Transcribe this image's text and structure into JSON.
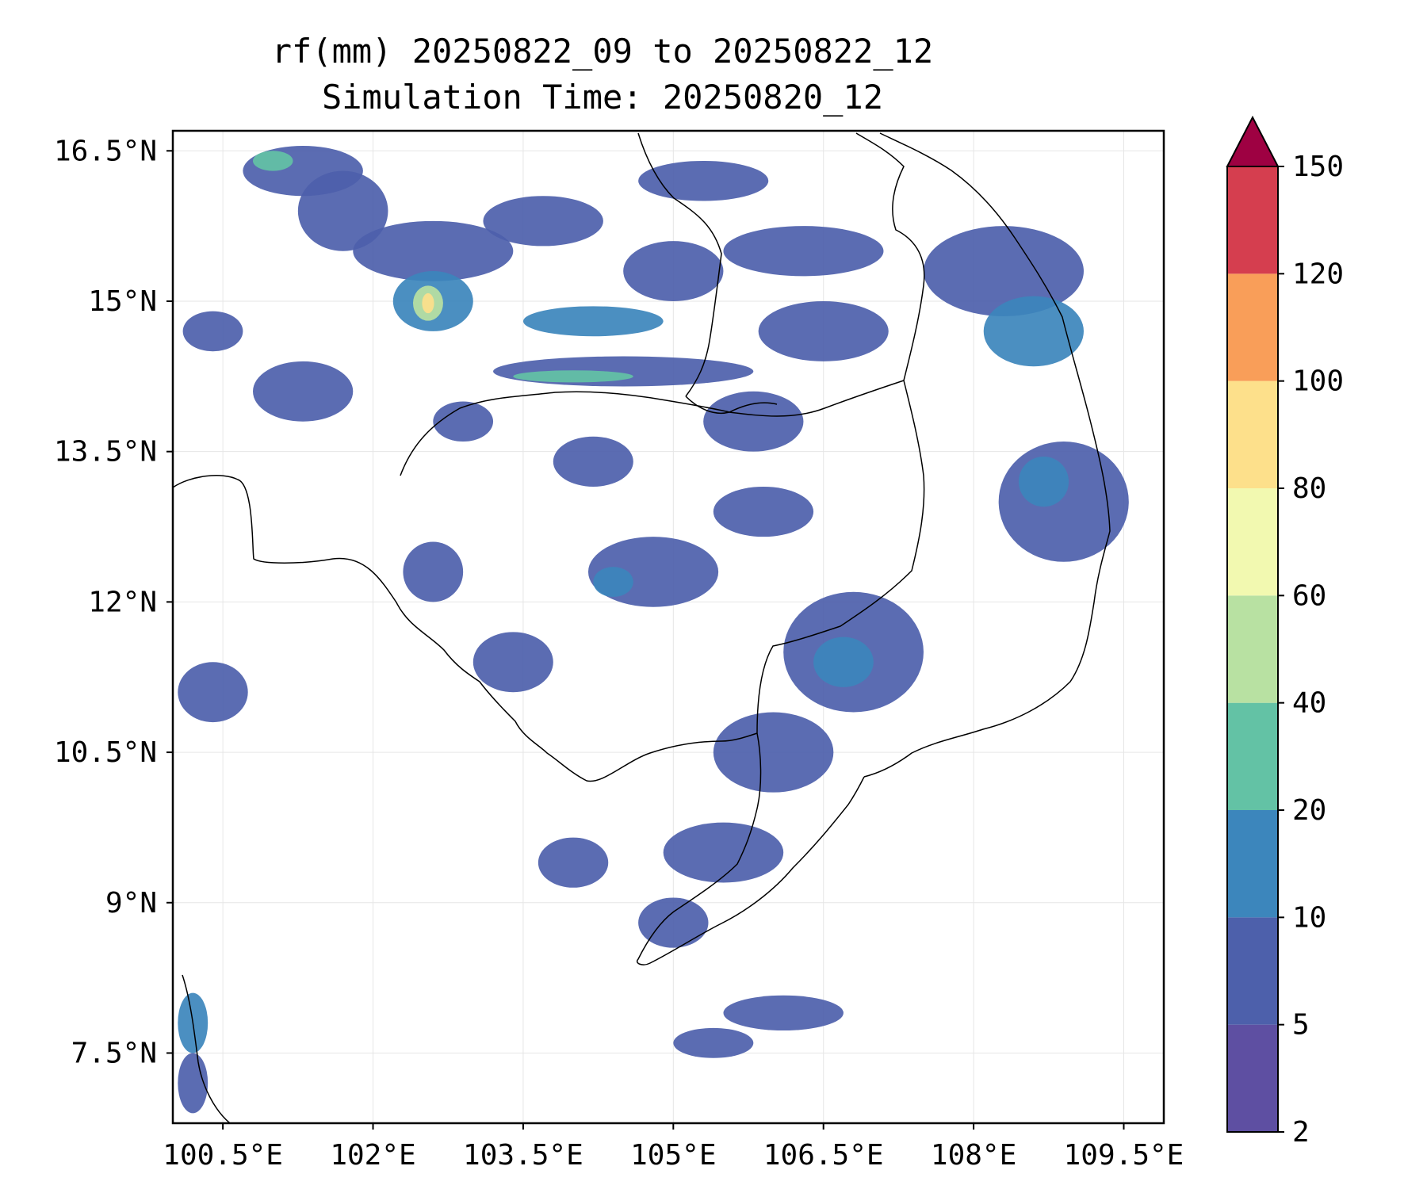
{
  "title": {
    "line1": "rf(mm) 20250822_09 to 20250822_12",
    "line2": "Simulation Time: 20250820_12"
  },
  "map": {
    "lon_range": [
      100.0,
      109.9
    ],
    "lat_range": [
      6.8,
      16.7
    ],
    "gridlines": true,
    "x_ticks": [
      {
        "value": 100.5,
        "label": "100.5°E"
      },
      {
        "value": 102.0,
        "label": "102°E"
      },
      {
        "value": 103.5,
        "label": "103.5°E"
      },
      {
        "value": 105.0,
        "label": "105°E"
      },
      {
        "value": 106.5,
        "label": "106.5°E"
      },
      {
        "value": 108.0,
        "label": "108°E"
      },
      {
        "value": 109.5,
        "label": "109.5°E"
      }
    ],
    "y_ticks": [
      {
        "value": 16.5,
        "label": "16.5°N"
      },
      {
        "value": 15.0,
        "label": "15°N"
      },
      {
        "value": 13.5,
        "label": "13.5°N"
      },
      {
        "value": 12.0,
        "label": "12°N"
      },
      {
        "value": 10.5,
        "label": "10.5°N"
      },
      {
        "value": 9.0,
        "label": "9°N"
      },
      {
        "value": 7.5,
        "label": "7.5°N"
      }
    ],
    "rainfall_cells": [
      {
        "lon": 101.3,
        "lat": 16.3,
        "w": 1.2,
        "h": 0.5,
        "level": 1
      },
      {
        "lon": 101.0,
        "lat": 16.4,
        "w": 0.4,
        "h": 0.2,
        "level": 3
      },
      {
        "lon": 101.7,
        "lat": 15.9,
        "w": 0.9,
        "h": 0.8,
        "level": 1
      },
      {
        "lon": 102.6,
        "lat": 15.5,
        "w": 1.6,
        "h": 0.6,
        "level": 1
      },
      {
        "lon": 102.6,
        "lat": 15.0,
        "w": 0.8,
        "h": 0.6,
        "level": 2
      },
      {
        "lon": 102.55,
        "lat": 14.98,
        "w": 0.3,
        "h": 0.35,
        "level": 4
      },
      {
        "lon": 102.55,
        "lat": 14.98,
        "w": 0.12,
        "h": 0.2,
        "level": 6
      },
      {
        "lon": 103.7,
        "lat": 15.8,
        "w": 1.2,
        "h": 0.5,
        "level": 1
      },
      {
        "lon": 104.2,
        "lat": 14.8,
        "w": 1.4,
        "h": 0.3,
        "level": 2
      },
      {
        "lon": 104.5,
        "lat": 14.3,
        "w": 2.6,
        "h": 0.3,
        "level": 1
      },
      {
        "lon": 104.0,
        "lat": 14.25,
        "w": 1.2,
        "h": 0.12,
        "level": 3
      },
      {
        "lon": 105.3,
        "lat": 16.2,
        "w": 1.3,
        "h": 0.4,
        "level": 1
      },
      {
        "lon": 105.0,
        "lat": 15.3,
        "w": 1.0,
        "h": 0.6,
        "level": 1
      },
      {
        "lon": 106.3,
        "lat": 15.5,
        "w": 1.6,
        "h": 0.5,
        "level": 1
      },
      {
        "lon": 106.5,
        "lat": 14.7,
        "w": 1.3,
        "h": 0.6,
        "level": 1
      },
      {
        "lon": 108.3,
        "lat": 15.3,
        "w": 1.6,
        "h": 0.9,
        "level": 1
      },
      {
        "lon": 108.6,
        "lat": 14.7,
        "w": 1.0,
        "h": 0.7,
        "level": 2
      },
      {
        "lon": 101.3,
        "lat": 14.1,
        "w": 1.0,
        "h": 0.6,
        "level": 1
      },
      {
        "lon": 100.4,
        "lat": 14.7,
        "w": 0.6,
        "h": 0.4,
        "level": 1
      },
      {
        "lon": 102.9,
        "lat": 13.8,
        "w": 0.6,
        "h": 0.4,
        "level": 1
      },
      {
        "lon": 104.2,
        "lat": 13.4,
        "w": 0.8,
        "h": 0.5,
        "level": 1
      },
      {
        "lon": 104.8,
        "lat": 12.3,
        "w": 1.3,
        "h": 0.7,
        "level": 1
      },
      {
        "lon": 104.4,
        "lat": 12.2,
        "w": 0.4,
        "h": 0.3,
        "level": 2
      },
      {
        "lon": 105.9,
        "lat": 12.9,
        "w": 1.0,
        "h": 0.5,
        "level": 1
      },
      {
        "lon": 105.8,
        "lat": 13.8,
        "w": 1.0,
        "h": 0.6,
        "level": 1
      },
      {
        "lon": 108.9,
        "lat": 13.0,
        "w": 1.3,
        "h": 1.2,
        "level": 1
      },
      {
        "lon": 108.7,
        "lat": 13.2,
        "w": 0.5,
        "h": 0.5,
        "level": 2
      },
      {
        "lon": 106.8,
        "lat": 11.5,
        "w": 1.4,
        "h": 1.2,
        "level": 1
      },
      {
        "lon": 106.7,
        "lat": 11.4,
        "w": 0.6,
        "h": 0.5,
        "level": 2
      },
      {
        "lon": 102.6,
        "lat": 12.3,
        "w": 0.6,
        "h": 0.6,
        "level": 1
      },
      {
        "lon": 103.4,
        "lat": 11.4,
        "w": 0.8,
        "h": 0.6,
        "level": 1
      },
      {
        "lon": 100.4,
        "lat": 11.1,
        "w": 0.7,
        "h": 0.6,
        "level": 1
      },
      {
        "lon": 106.0,
        "lat": 10.5,
        "w": 1.2,
        "h": 0.8,
        "level": 1
      },
      {
        "lon": 105.5,
        "lat": 9.5,
        "w": 1.2,
        "h": 0.6,
        "level": 1
      },
      {
        "lon": 104.0,
        "lat": 9.4,
        "w": 0.7,
        "h": 0.5,
        "level": 1
      },
      {
        "lon": 105.0,
        "lat": 8.8,
        "w": 0.7,
        "h": 0.5,
        "level": 1
      },
      {
        "lon": 106.1,
        "lat": 7.9,
        "w": 1.2,
        "h": 0.35,
        "level": 1
      },
      {
        "lon": 105.4,
        "lat": 7.6,
        "w": 0.8,
        "h": 0.3,
        "level": 1
      },
      {
        "lon": 100.2,
        "lat": 7.8,
        "w": 0.3,
        "h": 0.6,
        "level": 2
      },
      {
        "lon": 100.2,
        "lat": 7.2,
        "w": 0.3,
        "h": 0.6,
        "level": 1
      }
    ]
  },
  "colorbar": {
    "levels": [
      2,
      5,
      10,
      20,
      40,
      60,
      80,
      100,
      120,
      150
    ],
    "labels": [
      "2",
      "5",
      "10",
      "20",
      "40",
      "60",
      "80",
      "100",
      "120",
      "150"
    ],
    "colors": [
      "#5e4fa2",
      "#4d60ab",
      "#3c86bc",
      "#63c2a5",
      "#b8e1a2",
      "#f2f9b0",
      "#fde08b",
      "#f99e59",
      "#d53e4f",
      "#9e0142"
    ],
    "extend": "max"
  }
}
